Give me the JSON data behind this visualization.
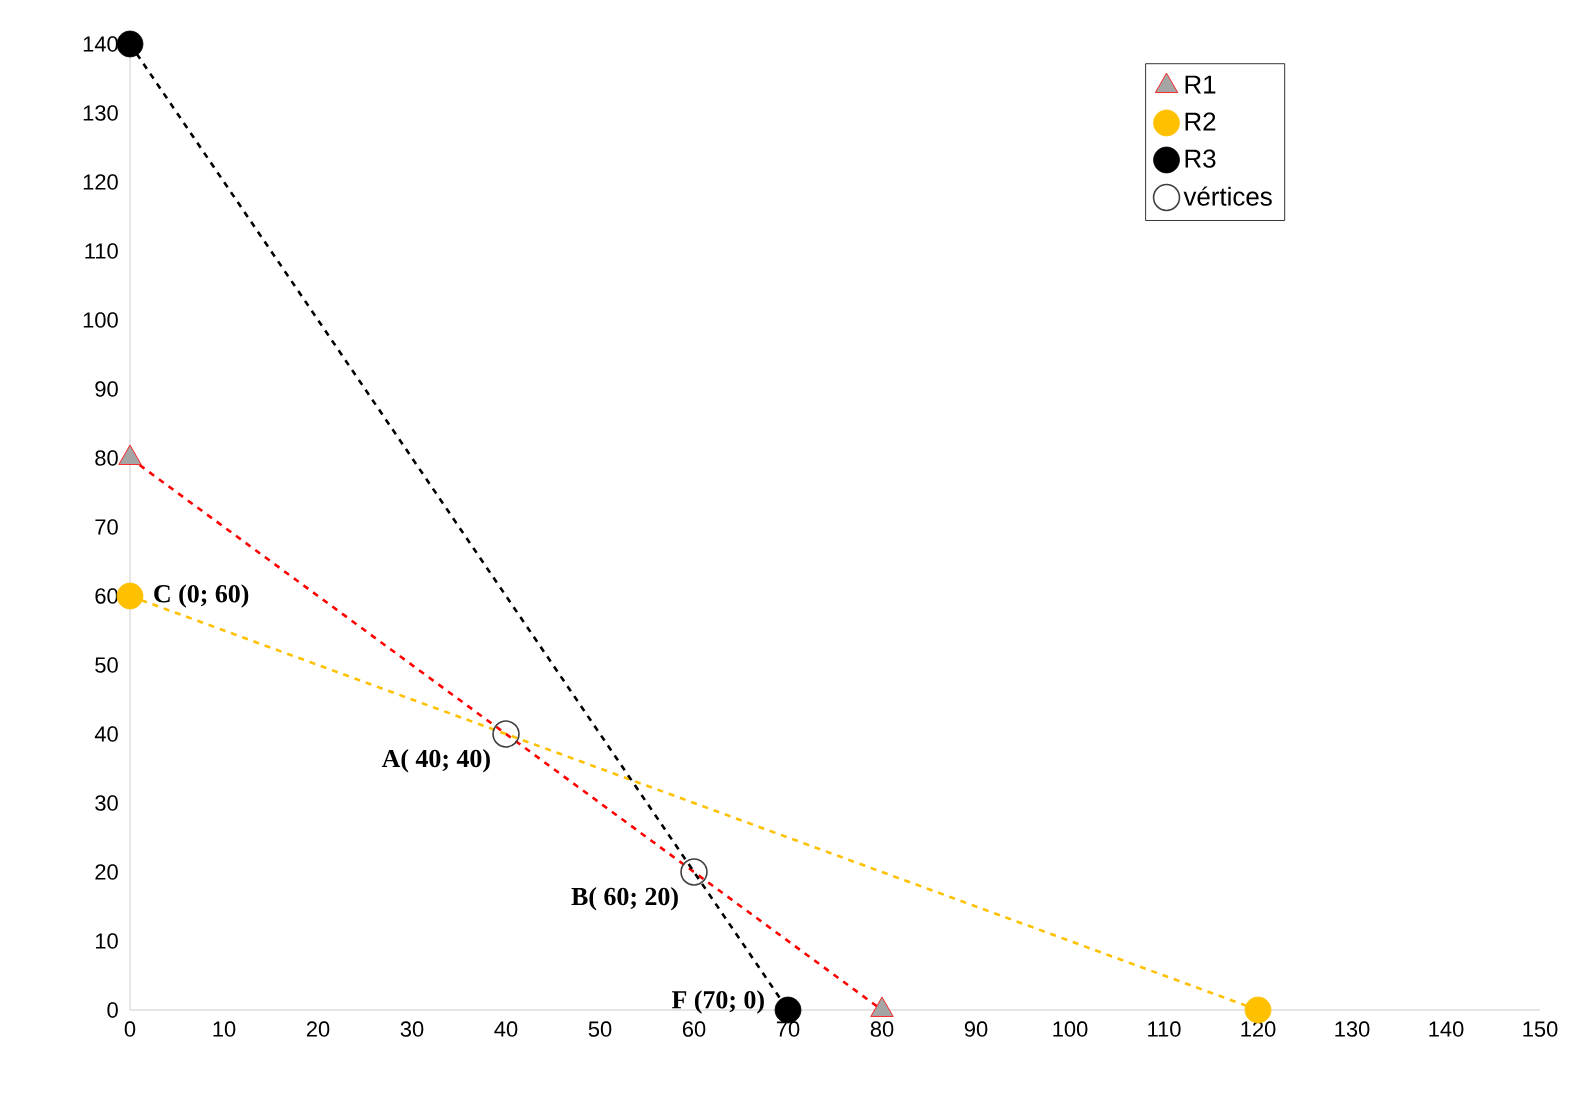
{
  "chart_data": {
    "type": "line",
    "xlim": [
      0,
      150
    ],
    "ylim": [
      0,
      140
    ],
    "xticks": [
      0,
      10,
      20,
      30,
      40,
      50,
      60,
      70,
      80,
      90,
      100,
      110,
      120,
      130,
      140,
      150
    ],
    "yticks": [
      0,
      10,
      20,
      30,
      40,
      50,
      60,
      70,
      80,
      90,
      100,
      110,
      120,
      130,
      140
    ],
    "grid": false,
    "legend": "top right",
    "series": [
      {
        "name": "R1",
        "marker": "triangle",
        "line_style": "dashed",
        "color": "#ff0000",
        "x": [
          0,
          80
        ],
        "values": [
          80,
          0
        ]
      },
      {
        "name": "R2",
        "marker": "circle",
        "line_style": "dashed",
        "color": "#ffc000",
        "x": [
          0,
          120
        ],
        "values": [
          60,
          0
        ]
      },
      {
        "name": "R3",
        "marker": "circle",
        "line_style": "dashed",
        "color": "#000000",
        "x": [
          0,
          70
        ],
        "values": [
          140,
          0
        ]
      },
      {
        "name": "vértices",
        "type": "scatter",
        "marker": "circle",
        "color": "#404040",
        "x": [
          40,
          60
        ],
        "values": [
          40,
          20
        ]
      }
    ],
    "annotations": [
      {
        "text": "C (0; 60)",
        "x": 0,
        "y": 60
      },
      {
        "text": "A( 40; 40)",
        "x": 40,
        "y": 40
      },
      {
        "text": "B( 60; 20)",
        "x": 60,
        "y": 20
      },
      {
        "text": "F (70; 0)",
        "x": 70,
        "y": 0
      }
    ]
  }
}
